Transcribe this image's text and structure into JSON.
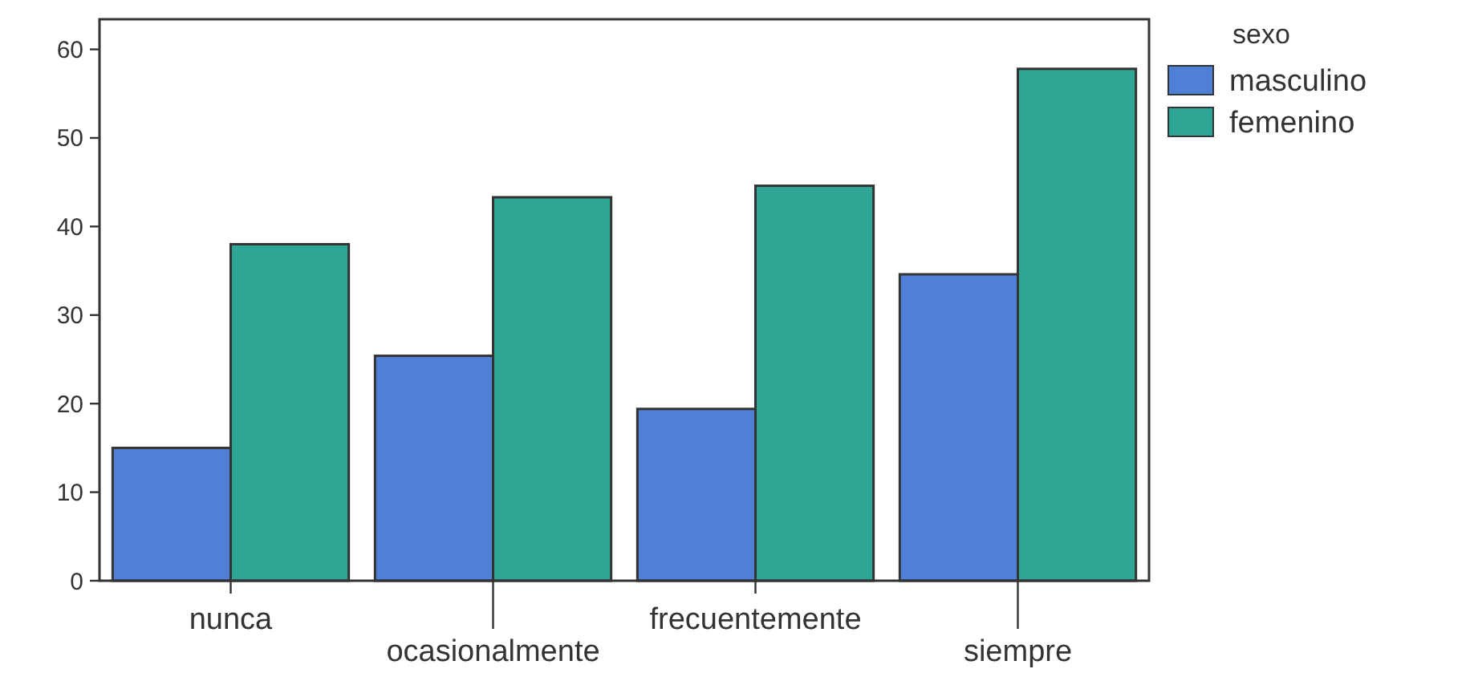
{
  "chart_data": {
    "type": "bar",
    "categories": [
      "nunca",
      "ocasionalmente",
      "frecuentemente",
      "siempre"
    ],
    "series": [
      {
        "name": "masculino",
        "color": "#4f7fd6",
        "values": [
          15.0,
          25.4,
          19.4,
          34.6
        ]
      },
      {
        "name": "femenino",
        "color": "#2fa595",
        "values": [
          38.0,
          43.3,
          44.6,
          57.8
        ]
      }
    ],
    "legend_title": "sexo",
    "legend": "top right",
    "grid": false,
    "ylim": [
      0,
      63.4
    ],
    "yticks": [
      0,
      10,
      20,
      30,
      40,
      50,
      60
    ]
  }
}
